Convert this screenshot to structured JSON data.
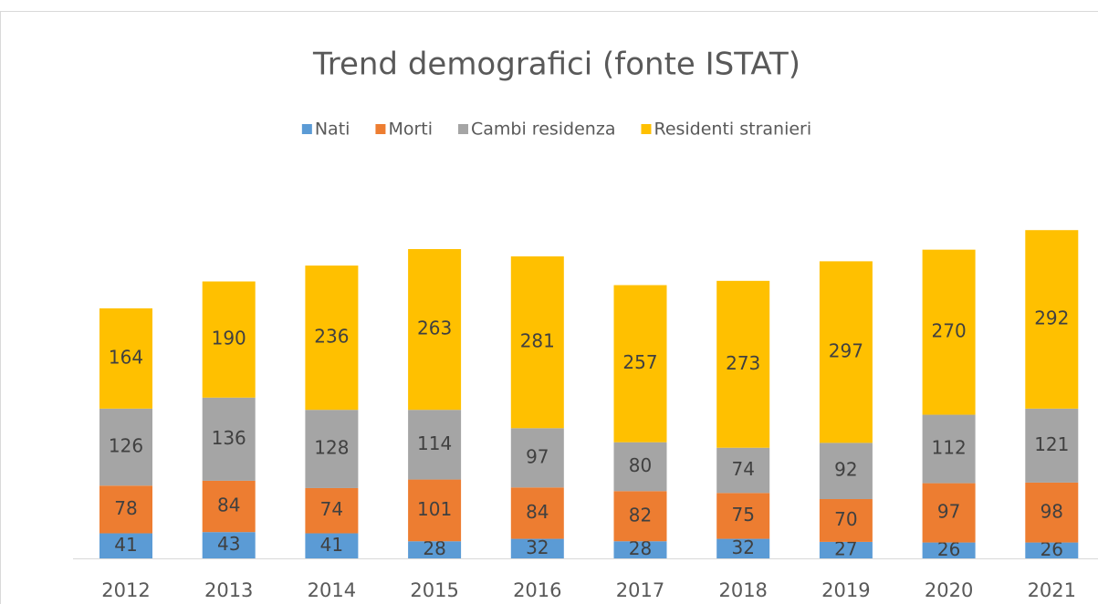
{
  "chart_data": {
    "type": "stacked_bar",
    "title": "Trend demografici (fonte ISTAT)",
    "categories": [
      "2012",
      "2013",
      "2014",
      "2015",
      "2016",
      "2017",
      "2018",
      "2019",
      "2020",
      "2021"
    ],
    "series": [
      {
        "name": "Nati",
        "color": "#5b9bd5",
        "values": [
          41,
          43,
          41,
          28,
          32,
          28,
          32,
          27,
          26,
          26
        ]
      },
      {
        "name": "Morti",
        "color": "#ed7d31",
        "values": [
          78,
          84,
          74,
          101,
          84,
          82,
          75,
          70,
          97,
          98
        ]
      },
      {
        "name": "Cambi residenza",
        "color": "#a5a5a5",
        "values": [
          126,
          136,
          128,
          114,
          97,
          80,
          74,
          92,
          112,
          121
        ]
      },
      {
        "name": "Residenti stranieri",
        "color": "#ffc000",
        "values": [
          164,
          190,
          236,
          263,
          281,
          257,
          273,
          297,
          270,
          292
        ]
      }
    ],
    "legend": "top"
  }
}
